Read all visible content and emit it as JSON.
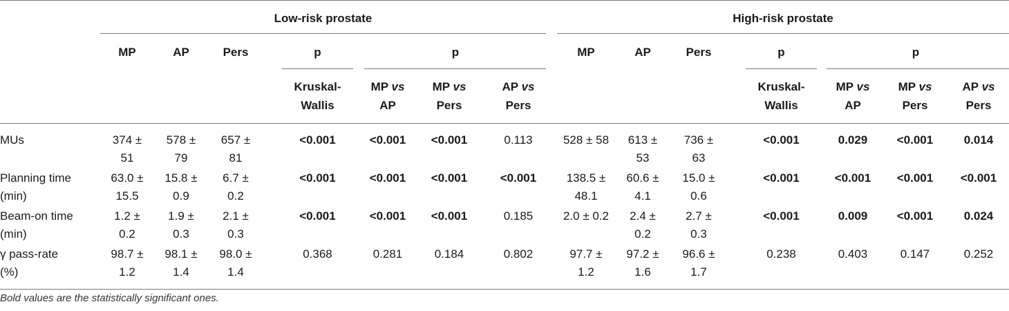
{
  "groups": {
    "low": "Low-risk prostate",
    "high": "High-risk prostate"
  },
  "headers": {
    "mp": "MP",
    "ap": "AP",
    "pers": "Pers",
    "p": "p",
    "kw_line1": "Kruskal-",
    "kw_line2": "Wallis",
    "vs": "vs",
    "mp_vs_ap_a": "MP",
    "mp_vs_ap_b": "AP",
    "mp_vs_pers_a": "MP",
    "mp_vs_pers_b": "Pers",
    "ap_vs_pers_a": "AP",
    "ap_vs_pers_b": "Pers"
  },
  "rows": [
    {
      "label": [
        "MUs",
        ""
      ],
      "low": {
        "mp": [
          "374 ±",
          "51"
        ],
        "ap": [
          "578 ±",
          "79"
        ],
        "pers": [
          "657 ±",
          "81"
        ],
        "kw": "<0.001",
        "mp_ap": "<0.001",
        "mp_pers": "<0.001",
        "ap_pers": "0.113"
      },
      "high": {
        "mp": [
          "528 ± 58",
          ""
        ],
        "ap": [
          "613 ±",
          "53"
        ],
        "pers": [
          "736 ±",
          "63"
        ],
        "kw": "<0.001",
        "mp_ap": "0.029",
        "mp_pers": "<0.001",
        "ap_pers": "0.014"
      }
    },
    {
      "label": [
        "Planning time",
        "(min)"
      ],
      "low": {
        "mp": [
          "63.0 ±",
          "15.5"
        ],
        "ap": [
          "15.8 ±",
          "0.9"
        ],
        "pers": [
          "6.7 ±",
          "0.2"
        ],
        "kw": "<0.001",
        "mp_ap": "<0.001",
        "mp_pers": "<0.001",
        "ap_pers": "<0.001"
      },
      "high": {
        "mp": [
          "138.5 ±",
          "48.1"
        ],
        "ap": [
          "60.6 ±",
          "4.1"
        ],
        "pers": [
          "15.0 ±",
          "0.6"
        ],
        "kw": "<0.001",
        "mp_ap": "<0.001",
        "mp_pers": "<0.001",
        "ap_pers": "<0.001"
      }
    },
    {
      "label": [
        "Beam-on time",
        "(min)"
      ],
      "low": {
        "mp": [
          "1.2 ±",
          "0.2"
        ],
        "ap": [
          "1.9 ±",
          "0.3"
        ],
        "pers": [
          "2.1 ±",
          "0.3"
        ],
        "kw": "<0.001",
        "mp_ap": "<0.001",
        "mp_pers": "<0.001",
        "ap_pers": "0.185"
      },
      "high": {
        "mp": [
          "2.0 ± 0.2",
          ""
        ],
        "ap": [
          "2.4 ±",
          "0.2"
        ],
        "pers": [
          "2.7 ±",
          "0.3"
        ],
        "kw": "<0.001",
        "mp_ap": "0.009",
        "mp_pers": "<0.001",
        "ap_pers": "0.024"
      }
    },
    {
      "label": [
        "γ pass-rate",
        "(%)"
      ],
      "low": {
        "mp": [
          "98.7 ±",
          "1.2"
        ],
        "ap": [
          "98.1 ±",
          "1.4"
        ],
        "pers": [
          "98.0 ±",
          "1.4"
        ],
        "kw": "0.368",
        "mp_ap": "0.281",
        "mp_pers": "0.184",
        "ap_pers": "0.802"
      },
      "high": {
        "mp": [
          "97.7 ±",
          "1.2"
        ],
        "ap": [
          "97.2 ±",
          "1.6"
        ],
        "pers": [
          "96.6 ±",
          "1.7"
        ],
        "kw": "0.238",
        "mp_ap": "0.403",
        "mp_pers": "0.147",
        "ap_pers": "0.252"
      }
    }
  ],
  "bold_cells": {
    "low": [
      [
        "kw",
        "mp_ap",
        "mp_pers"
      ],
      [
        "kw",
        "mp_ap",
        "mp_pers",
        "ap_pers"
      ],
      [
        "kw",
        "mp_ap",
        "mp_pers"
      ],
      []
    ],
    "high": [
      [
        "kw",
        "mp_ap",
        "mp_pers",
        "ap_pers"
      ],
      [
        "kw",
        "mp_ap",
        "mp_pers",
        "ap_pers"
      ],
      [
        "kw",
        "mp_ap",
        "mp_pers",
        "ap_pers"
      ],
      []
    ]
  },
  "footnote": "Bold values are the statistically significant ones."
}
